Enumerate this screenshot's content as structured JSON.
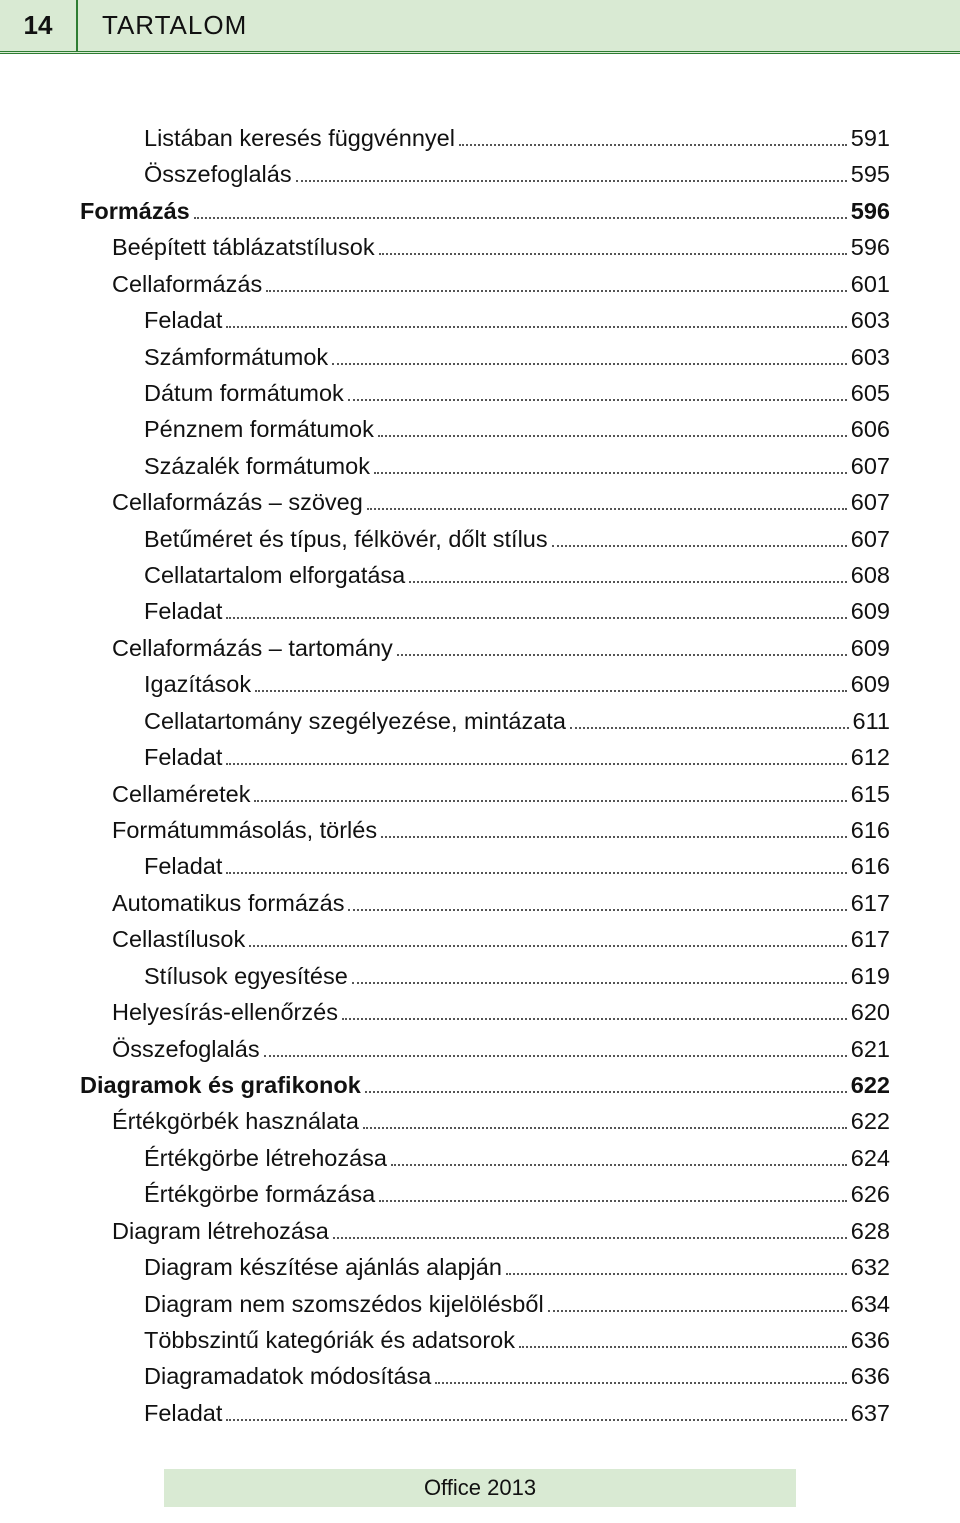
{
  "header": {
    "page_number": "14",
    "title": "TARTALOM"
  },
  "footer": {
    "text": "Office 2013"
  },
  "toc": [
    {
      "indent": 2,
      "label": "Listában keresés függvénnyel",
      "page": "591",
      "bold": false,
      "spacer_before": true
    },
    {
      "indent": 2,
      "label": "Összefoglalás",
      "page": "595",
      "bold": false
    },
    {
      "indent": 0,
      "label": "Formázás",
      "page": "596",
      "bold": true
    },
    {
      "indent": 1,
      "label": "Beépített táblázatstílusok",
      "page": "596",
      "bold": false
    },
    {
      "indent": 1,
      "label": "Cellaformázás",
      "page": "601",
      "bold": false
    },
    {
      "indent": 2,
      "label": "Feladat",
      "page": "603",
      "bold": false
    },
    {
      "indent": 2,
      "label": "Számformátumok",
      "page": "603",
      "bold": false
    },
    {
      "indent": 2,
      "label": "Dátum formátumok",
      "page": "605",
      "bold": false
    },
    {
      "indent": 2,
      "label": "Pénznem formátumok",
      "page": "606",
      "bold": false
    },
    {
      "indent": 2,
      "label": "Százalék formátumok",
      "page": "607",
      "bold": false
    },
    {
      "indent": 1,
      "label": "Cellaformázás – szöveg",
      "page": "607",
      "bold": false
    },
    {
      "indent": 2,
      "label": "Betűméret és típus, félkövér, dőlt stílus",
      "page": "607",
      "bold": false
    },
    {
      "indent": 2,
      "label": "Cellatartalom elforgatása",
      "page": "608",
      "bold": false
    },
    {
      "indent": 2,
      "label": "Feladat",
      "page": "609",
      "bold": false
    },
    {
      "indent": 1,
      "label": "Cellaformázás – tartomány",
      "page": "609",
      "bold": false
    },
    {
      "indent": 2,
      "label": "Igazítások",
      "page": "609",
      "bold": false
    },
    {
      "indent": 2,
      "label": "Cellatartomány szegélyezése, mintázata",
      "page": "611",
      "bold": false
    },
    {
      "indent": 2,
      "label": "Feladat",
      "page": "612",
      "bold": false
    },
    {
      "indent": 1,
      "label": "Cellaméretek",
      "page": "615",
      "bold": false
    },
    {
      "indent": 1,
      "label": "Formátummásolás, törlés",
      "page": "616",
      "bold": false
    },
    {
      "indent": 2,
      "label": "Feladat",
      "page": "616",
      "bold": false
    },
    {
      "indent": 1,
      "label": "Automatikus formázás",
      "page": "617",
      "bold": false
    },
    {
      "indent": 1,
      "label": "Cellastílusok",
      "page": "617",
      "bold": false
    },
    {
      "indent": 2,
      "label": "Stílusok egyesítése",
      "page": "619",
      "bold": false
    },
    {
      "indent": 1,
      "label": "Helyesírás-ellenőrzés",
      "page": "620",
      "bold": false
    },
    {
      "indent": 1,
      "label": "Összefoglalás",
      "page": "621",
      "bold": false
    },
    {
      "indent": 0,
      "label": "Diagramok és grafikonok",
      "page": "622",
      "bold": true
    },
    {
      "indent": 1,
      "label": "Értékgörbék használata",
      "page": "622",
      "bold": false
    },
    {
      "indent": 2,
      "label": "Értékgörbe létrehozása",
      "page": "624",
      "bold": false
    },
    {
      "indent": 2,
      "label": "Értékgörbe formázása",
      "page": "626",
      "bold": false
    },
    {
      "indent": 1,
      "label": "Diagram létrehozása",
      "page": "628",
      "bold": false
    },
    {
      "indent": 2,
      "label": "Diagram készítése ajánlás alapján",
      "page": "632",
      "bold": false
    },
    {
      "indent": 2,
      "label": "Diagram nem szomszédos kijelölésből",
      "page": "634",
      "bold": false
    },
    {
      "indent": 2,
      "label": "Többszintű kategóriák és adatsorok",
      "page": "636",
      "bold": false
    },
    {
      "indent": 2,
      "label": "Diagramadatok módosítása",
      "page": "636",
      "bold": false
    },
    {
      "indent": 2,
      "label": "Feladat",
      "page": "637",
      "bold": false
    }
  ]
}
